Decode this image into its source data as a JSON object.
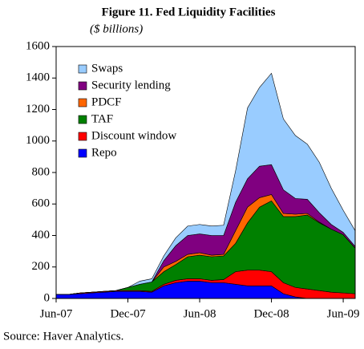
{
  "chart_data": {
    "type": "stacked_area",
    "title": "Figure 11. Fed Liquidity Facilities",
    "subtitle": "($ billions)",
    "source": "Source: Haver Analytics.",
    "x": [
      "2007-06",
      "2007-07",
      "2007-08",
      "2007-09",
      "2007-10",
      "2007-11",
      "2007-12",
      "2008-01",
      "2008-02",
      "2008-03",
      "2008-04",
      "2008-05",
      "2008-06",
      "2008-07",
      "2008-08",
      "2008-09",
      "2008-10",
      "2008-11",
      "2008-12",
      "2009-01",
      "2009-02",
      "2009-03",
      "2009-04",
      "2009-05",
      "2009-06",
      "2009-07"
    ],
    "series": [
      {
        "name": "Repo",
        "color": "#0000ff",
        "values": [
          25,
          25,
          30,
          35,
          40,
          45,
          45,
          45,
          40,
          80,
          100,
          110,
          110,
          100,
          100,
          90,
          80,
          80,
          80,
          30,
          10,
          0,
          0,
          0,
          0,
          0
        ]
      },
      {
        "name": "Discount window",
        "color": "#ff0000",
        "values": [
          0,
          0,
          5,
          5,
          5,
          5,
          5,
          5,
          5,
          10,
          15,
          15,
          15,
          15,
          20,
          80,
          100,
          100,
          90,
          70,
          60,
          60,
          50,
          40,
          35,
          30
        ]
      },
      {
        "name": "TAF",
        "color": "#008000",
        "values": [
          0,
          0,
          0,
          0,
          0,
          0,
          20,
          40,
          60,
          80,
          100,
          140,
          150,
          150,
          150,
          180,
          300,
          400,
          450,
          420,
          450,
          470,
          430,
          400,
          370,
          290
        ]
      },
      {
        "name": "PDCF",
        "color": "#ff6600",
        "values": [
          0,
          0,
          0,
          0,
          0,
          0,
          0,
          0,
          0,
          30,
          20,
          15,
          15,
          10,
          10,
          80,
          100,
          60,
          40,
          20,
          15,
          10,
          5,
          0,
          0,
          0
        ]
      },
      {
        "name": "Security lending",
        "color": "#800080",
        "values": [
          0,
          0,
          0,
          0,
          0,
          0,
          0,
          0,
          0,
          40,
          100,
          120,
          120,
          125,
          120,
          180,
          180,
          200,
          190,
          150,
          100,
          90,
          60,
          30,
          15,
          10
        ]
      },
      {
        "name": "Swaps",
        "color": "#99ccff",
        "values": [
          0,
          0,
          0,
          0,
          0,
          0,
          0,
          20,
          20,
          30,
          50,
          60,
          60,
          60,
          65,
          200,
          450,
          500,
          580,
          450,
          400,
          350,
          320,
          230,
          140,
          100
        ]
      }
    ],
    "ylim": [
      0,
      1600
    ],
    "yticks": [
      0,
      200,
      400,
      600,
      800,
      1000,
      1200,
      1400,
      1600
    ],
    "xticks": [
      {
        "value": "2007-06",
        "label": "Jun-07"
      },
      {
        "value": "2007-12",
        "label": "Dec-07"
      },
      {
        "value": "2008-06",
        "label": "Jun-08"
      },
      {
        "value": "2008-12",
        "label": "Dec-08"
      },
      {
        "value": "2009-06",
        "label": "Jun-09"
      }
    ],
    "legend": "upper left"
  }
}
